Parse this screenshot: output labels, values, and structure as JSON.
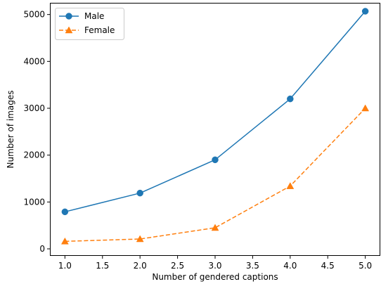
{
  "chart_data": {
    "type": "line",
    "title": "",
    "xlabel": "Number of gendered captions",
    "ylabel": "Number of images",
    "xlim": [
      0.8,
      5.2
    ],
    "ylim": [
      -150,
      5250
    ],
    "xticks": [
      1.0,
      1.5,
      2.0,
      2.5,
      3.0,
      3.5,
      4.0,
      4.5,
      5.0
    ],
    "xtick_labels": [
      "1.0",
      "1.5",
      "2.0",
      "2.5",
      "3.0",
      "3.5",
      "4.0",
      "4.5",
      "5.0"
    ],
    "yticks": [
      0,
      1000,
      2000,
      3000,
      4000,
      5000
    ],
    "ytick_labels": [
      "0",
      "1000",
      "2000",
      "3000",
      "4000",
      "5000"
    ],
    "grid": false,
    "legend_position": "upper-left",
    "series": [
      {
        "name": "Male",
        "x": [
          1,
          2,
          3,
          4,
          5
        ],
        "values": [
          790,
          1190,
          1900,
          3200,
          5070
        ],
        "color": "#1f77b4",
        "line_style": "solid",
        "marker": "circle"
      },
      {
        "name": "Female",
        "x": [
          1,
          2,
          3,
          4,
          5
        ],
        "values": [
          160,
          210,
          450,
          1340,
          3000
        ],
        "color": "#ff7f0e",
        "line_style": "dashed",
        "marker": "triangle"
      }
    ]
  }
}
